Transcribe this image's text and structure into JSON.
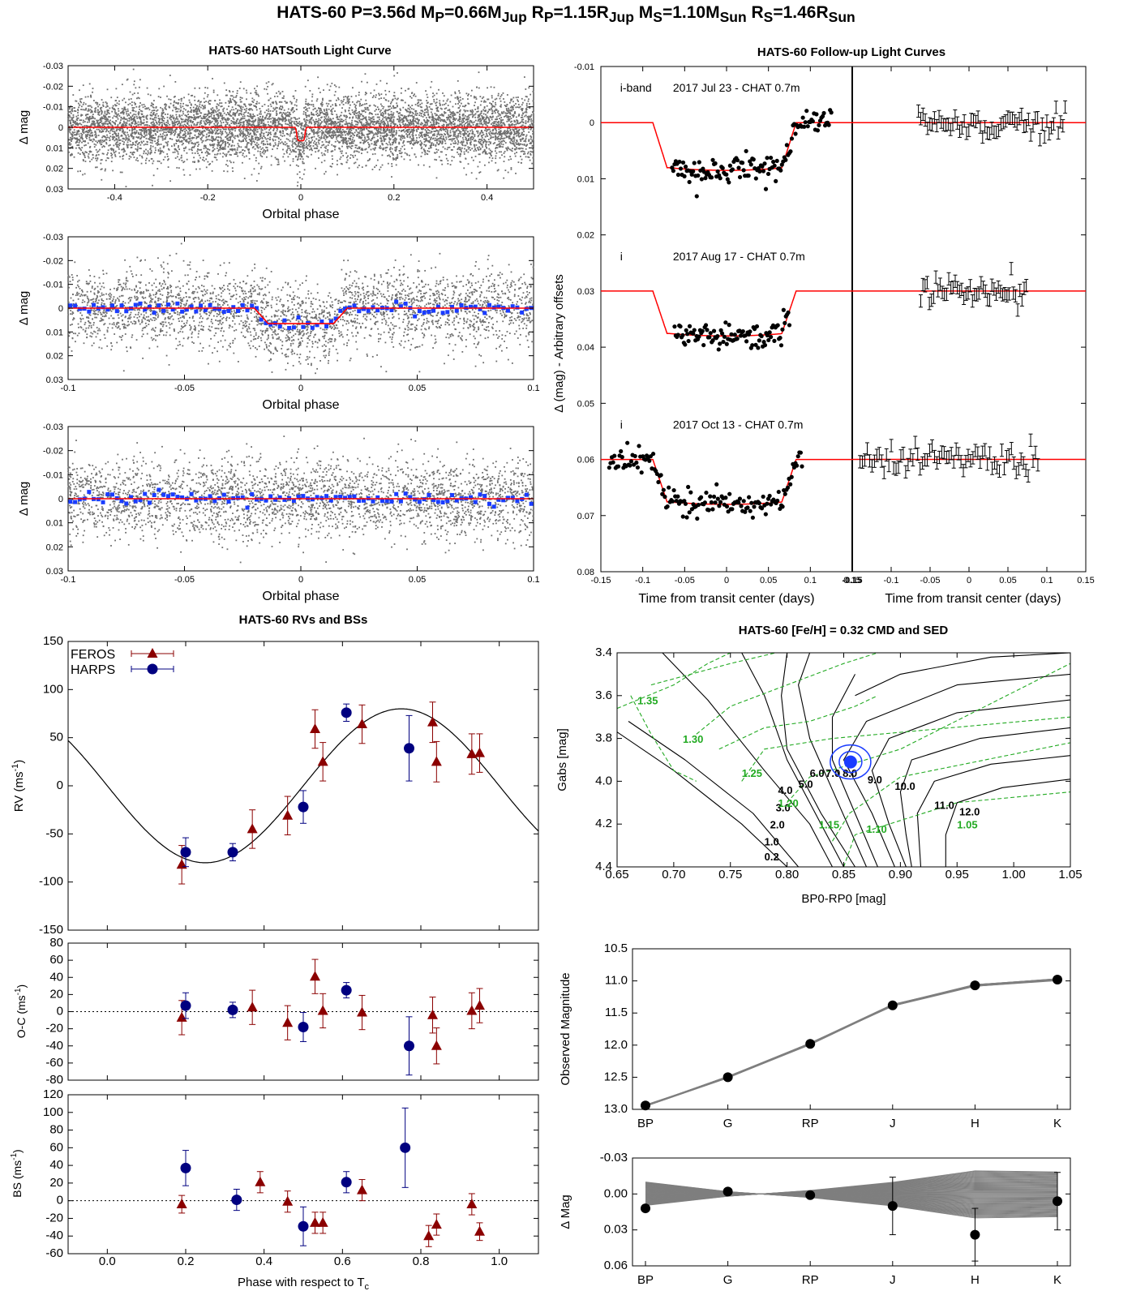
{
  "header": {
    "title_parts": [
      "HATS-60  P=3.56d  M",
      "P",
      "=0.66M",
      "Jup",
      "  R",
      "P",
      "=1.15R",
      "Jup",
      "  M",
      "S",
      "=1.10M",
      "Sun",
      "  R",
      "S",
      "=1.46R",
      "Sun"
    ]
  },
  "colors": {
    "model": "#ff0000",
    "raw": "#6e6e6e",
    "binned": "#1a3cff",
    "feros": "#8b0000",
    "harps": "#000080",
    "iso": "#000000",
    "track": "#22aa22",
    "sed": "#7f7f7f"
  },
  "chart_data": [
    {
      "id": "hs1",
      "type": "scatter",
      "title": "HATS-60 HATSouth Light Curve",
      "xlabel": "Orbital phase",
      "ylabel": "Δ mag",
      "xlim": [
        -0.5,
        0.5
      ],
      "ylim": [
        0.03,
        -0.03
      ],
      "xticks": [
        -0.4,
        -0.2,
        0,
        0.2,
        0.4
      ],
      "xtick_labels": [
        "-0.4",
        "-0.2",
        "0",
        "0.2",
        "0.4"
      ],
      "yticks": [
        -0.03,
        -0.02,
        -0.01,
        0,
        0.01,
        0.02,
        0.03
      ],
      "ytick_labels": [
        "-0.03",
        "-0.02",
        "-0.01",
        "0",
        "0.01",
        "0.02",
        "0.03"
      ],
      "raw_points": 6500,
      "raw_scatter": 0.008,
      "binned": false,
      "transit": {
        "center": 0,
        "depth": 0.0065,
        "half_width": 0.011,
        "ingress": 0.004
      }
    },
    {
      "id": "hs2",
      "type": "scatter",
      "xlabel": "Orbital phase",
      "ylabel": "Δ mag",
      "xlim": [
        -0.1,
        0.1
      ],
      "ylim": [
        0.03,
        -0.03
      ],
      "xticks": [
        -0.1,
        -0.05,
        0,
        0.05,
        0.1
      ],
      "xtick_labels": [
        "-0.1",
        "-0.05",
        "0",
        "0.05",
        "0.1"
      ],
      "yticks": [
        -0.03,
        -0.02,
        -0.01,
        0,
        0.01,
        0.02,
        0.03
      ],
      "ytick_labels": [
        "-0.03",
        "-0.02",
        "-0.01",
        "0",
        "0.01",
        "0.02",
        "0.03"
      ],
      "raw_points": 3000,
      "raw_scatter": 0.008,
      "binned": true,
      "bin_step": 0.002,
      "transit": {
        "center": 0,
        "depth": 0.0065,
        "half_width": 0.02,
        "ingress": 0.006
      }
    },
    {
      "id": "hs3",
      "type": "scatter",
      "xlabel": "Orbital phase",
      "ylabel": "Δ mag",
      "xlim": [
        -0.1,
        0.1
      ],
      "ylim": [
        0.03,
        -0.03
      ],
      "xticks": [
        -0.1,
        -0.05,
        0,
        0.05,
        0.1
      ],
      "xtick_labels": [
        "-0.1",
        "-0.05",
        "0",
        "0.05",
        "0.1"
      ],
      "yticks": [
        -0.03,
        -0.02,
        -0.01,
        0,
        0.01,
        0.02,
        0.03
      ],
      "ytick_labels": [
        "-0.03",
        "-0.02",
        "-0.01",
        "0",
        "0.01",
        "0.02",
        "0.03"
      ],
      "raw_points": 3000,
      "raw_scatter": 0.008,
      "binned": true,
      "bin_step": 0.002,
      "transit": null
    },
    {
      "id": "fu",
      "type": "scatter",
      "title": "HATS-60 Follow-up Light Curves",
      "ylabel": "Δ (mag) - Arbitrary offsets",
      "xlabel_left": "Time from transit center (days)",
      "xlabel_right": "Time from transit center (days)",
      "xlim": [
        -0.15,
        0.15
      ],
      "ylim": [
        0.08,
        -0.01
      ],
      "xticks": [
        -0.15,
        -0.1,
        -0.05,
        0,
        0.05,
        0.1,
        0.15
      ],
      "xtick_labels_left": [
        "-0.15",
        "-0.1",
        "-0.05",
        "0",
        "0.05",
        "0.1",
        "0.15"
      ],
      "xtick_labels_right": [
        "-0.15",
        "-0.1",
        "-0.05",
        "0",
        "0.05",
        "0.1",
        "0.15"
      ],
      "yticks": [
        -0.01,
        0,
        0.01,
        0.02,
        0.03,
        0.04,
        0.05,
        0.06,
        0.07,
        0.08
      ],
      "ytick_labels": [
        "-0.01",
        "0",
        "0.01",
        "0.02",
        "0.03",
        "0.04",
        "0.05",
        "0.06",
        "0.07",
        "0.08"
      ],
      "datasets": [
        {
          "band": "i-band",
          "label": "2017 Jul 23 - CHAT 0.7m",
          "offset": 0.0,
          "t_start": -0.065,
          "t_end": 0.125,
          "n": 130,
          "depth": 0.0085,
          "resid_start": -0.065,
          "resid_end": 0.125
        },
        {
          "band": "i",
          "label": "2017 Aug 17 - CHAT 0.7m",
          "offset": 0.03,
          "t_start": -0.062,
          "t_end": 0.075,
          "n": 100,
          "depth": 0.008,
          "resid_start": -0.062,
          "resid_end": 0.075
        },
        {
          "band": "i",
          "label": "2017 Oct 13 - CHAT 0.7m",
          "offset": 0.06,
          "t_start": -0.14,
          "t_end": 0.09,
          "n": 150,
          "depth": 0.008,
          "resid_start": -0.14,
          "resid_end": 0.09
        }
      ],
      "transit": {
        "t1": -0.088,
        "t2": -0.07,
        "t3": 0.065,
        "t4": 0.083
      }
    },
    {
      "id": "rv",
      "type": "scatter",
      "title": "HATS-60 RVs and BSs",
      "ylabel": "RV (ms-1)",
      "xlim": [
        -0.1,
        1.1
      ],
      "ylim": [
        -150,
        150
      ],
      "yticks": [
        -150,
        -100,
        -50,
        0,
        50,
        100,
        150
      ],
      "ytick_labels": [
        "-150",
        "-100",
        "-50",
        "0",
        "50",
        "100",
        "150"
      ],
      "model": {
        "K": 80,
        "min_phase": 0.25
      },
      "legend": [
        "FEROS",
        "HARPS"
      ],
      "feros": [
        [
          0.19,
          -82,
          20
        ],
        [
          0.37,
          -45,
          20
        ],
        [
          0.46,
          -31,
          20
        ],
        [
          0.53,
          59,
          20
        ],
        [
          0.55,
          25,
          20
        ],
        [
          0.65,
          64,
          20
        ],
        [
          0.83,
          66,
          21
        ],
        [
          0.84,
          25,
          21
        ],
        [
          0.93,
          33,
          21
        ],
        [
          0.95,
          34,
          20
        ]
      ],
      "harps": [
        [
          0.2,
          -69,
          15
        ],
        [
          0.32,
          -69,
          9
        ],
        [
          0.5,
          -22,
          17
        ],
        [
          0.61,
          76,
          9
        ],
        [
          0.77,
          39,
          34
        ]
      ]
    },
    {
      "id": "oc",
      "type": "scatter",
      "ylabel": "O-C (ms-1)",
      "xlim": [
        -0.1,
        1.1
      ],
      "ylim": [
        -80,
        80
      ],
      "yticks": [
        -80,
        -60,
        -40,
        -20,
        0,
        20,
        40,
        60,
        80
      ],
      "ytick_labels": [
        "-80",
        "-60",
        "-40",
        "-20",
        "0",
        "20",
        "40",
        "60",
        "80"
      ],
      "feros": [
        [
          0.19,
          -7,
          20
        ],
        [
          0.37,
          5,
          20
        ],
        [
          0.46,
          -13,
          20
        ],
        [
          0.53,
          41,
          20
        ],
        [
          0.55,
          1,
          20
        ],
        [
          0.65,
          -1,
          20
        ],
        [
          0.83,
          -4,
          21
        ],
        [
          0.84,
          -40,
          21
        ],
        [
          0.93,
          1,
          21
        ],
        [
          0.95,
          7,
          20
        ]
      ],
      "harps": [
        [
          0.2,
          7,
          15
        ],
        [
          0.32,
          2,
          9
        ],
        [
          0.5,
          -18,
          17
        ],
        [
          0.61,
          25,
          9
        ],
        [
          0.77,
          -40,
          34
        ]
      ]
    },
    {
      "id": "bs",
      "type": "scatter",
      "ylabel": "BS (ms-1)",
      "xlabel": "Phase with respect to Tc",
      "xlim": [
        -0.1,
        1.1
      ],
      "ylim": [
        -60,
        120
      ],
      "xticks": [
        0,
        0.2,
        0.4,
        0.6,
        0.8,
        1.0
      ],
      "xtick_labels": [
        "0.0",
        "0.2",
        "0.4",
        "0.6",
        "0.8",
        "1.0"
      ],
      "yticks": [
        -60,
        -40,
        -20,
        0,
        20,
        40,
        60,
        80,
        100,
        120
      ],
      "ytick_labels": [
        "-60",
        "-40",
        "-20",
        "0",
        "20",
        "40",
        "60",
        "80",
        "100",
        "120"
      ],
      "feros": [
        [
          0.19,
          -4,
          10
        ],
        [
          0.39,
          21,
          12
        ],
        [
          0.46,
          -1,
          12
        ],
        [
          0.53,
          -25,
          12
        ],
        [
          0.55,
          -25,
          12
        ],
        [
          0.65,
          12,
          12
        ],
        [
          0.82,
          -40,
          12
        ],
        [
          0.84,
          -27,
          12
        ],
        [
          0.93,
          -4,
          12
        ],
        [
          0.95,
          -35,
          10
        ]
      ],
      "harps": [
        [
          0.2,
          37,
          20
        ],
        [
          0.33,
          1,
          12
        ],
        [
          0.5,
          -29,
          22
        ],
        [
          0.61,
          21,
          12
        ],
        [
          0.76,
          60,
          45
        ]
      ]
    },
    {
      "id": "cmd",
      "type": "line",
      "title": "HATS-60 [Fe/H] = 0.32 CMD and SED",
      "xlabel": "BP0-RP0 [mag]",
      "ylabel": "Gabs [mag]",
      "xlim": [
        0.65,
        1.05
      ],
      "ylim": [
        4.4,
        3.4
      ],
      "xticks": [
        0.65,
        0.7,
        0.75,
        0.8,
        0.85,
        0.9,
        0.95,
        1.0,
        1.05
      ],
      "xtick_labels": [
        "0.65",
        "0.70",
        "0.75",
        "0.80",
        "0.85",
        "0.90",
        "0.95",
        "1.00",
        "1.05"
      ],
      "yticks": [
        3.4,
        3.6,
        3.8,
        4.0,
        4.2,
        4.4
      ],
      "ytick_labels": [
        "3.4",
        "3.6",
        "3.8",
        "4.0",
        "4.2",
        "4.4"
      ],
      "star": [
        0.856,
        3.91
      ],
      "isochrone_labels": [
        {
          "text": "0.2",
          "x": 0.78,
          "y": 4.37
        },
        {
          "text": "1.0",
          "x": 0.78,
          "y": 4.3
        },
        {
          "text": "2.0",
          "x": 0.785,
          "y": 4.22
        },
        {
          "text": "3.0",
          "x": 0.79,
          "y": 4.14
        },
        {
          "text": "4.0",
          "x": 0.792,
          "y": 4.06
        },
        {
          "text": "5.0",
          "x": 0.81,
          "y": 4.03
        },
        {
          "text": "6.0",
          "x": 0.82,
          "y": 3.98
        },
        {
          "text": "7.0",
          "x": 0.834,
          "y": 3.98
        },
        {
          "text": "8.0",
          "x": 0.849,
          "y": 3.98
        },
        {
          "text": "9.0",
          "x": 0.871,
          "y": 4.01
        },
        {
          "text": "10.0",
          "x": 0.895,
          "y": 4.04
        },
        {
          "text": "11.0",
          "x": 0.93,
          "y": 4.13
        },
        {
          "text": "12.0",
          "x": 0.952,
          "y": 4.16
        }
      ],
      "track_labels": [
        {
          "text": "1.35",
          "x": 0.668,
          "y": 3.64
        },
        {
          "text": "1.30",
          "x": 0.708,
          "y": 3.82
        },
        {
          "text": "1.25",
          "x": 0.76,
          "y": 3.98
        },
        {
          "text": "1.20",
          "x": 0.792,
          "y": 4.12
        },
        {
          "text": "1.15",
          "x": 0.828,
          "y": 4.22
        },
        {
          "text": "1.10",
          "x": 0.87,
          "y": 4.24
        },
        {
          "text": "1.05",
          "x": 0.95,
          "y": 4.22
        }
      ]
    },
    {
      "id": "sed",
      "type": "line",
      "ylabel": "Observed Magnitude",
      "categories": [
        "BP",
        "G",
        "RP",
        "J",
        "H",
        "K"
      ],
      "ylim": [
        13.0,
        10.5
      ],
      "yticks": [
        10.5,
        11.0,
        11.5,
        12.0,
        12.5,
        13.0
      ],
      "ytick_labels": [
        "10.5",
        "11.0",
        "11.5",
        "12.0",
        "12.5",
        "13.0"
      ],
      "values": [
        12.94,
        12.5,
        11.98,
        11.38,
        11.07,
        10.98
      ]
    },
    {
      "id": "sedres",
      "type": "line",
      "ylabel": "Δ Mag",
      "categories": [
        "BP",
        "G",
        "RP",
        "J",
        "H",
        "K"
      ],
      "ylim": [
        0.06,
        -0.03
      ],
      "yticks": [
        -0.03,
        0.0,
        0.03,
        0.06
      ],
      "ytick_labels": [
        "-0.03",
        "0.00",
        "0.03",
        "0.06"
      ],
      "values": [
        0.012,
        -0.002,
        0.001,
        0.01,
        0.034,
        0.006
      ],
      "errors": [
        0,
        0,
        0,
        0.024,
        0.022,
        0.024
      ]
    }
  ]
}
